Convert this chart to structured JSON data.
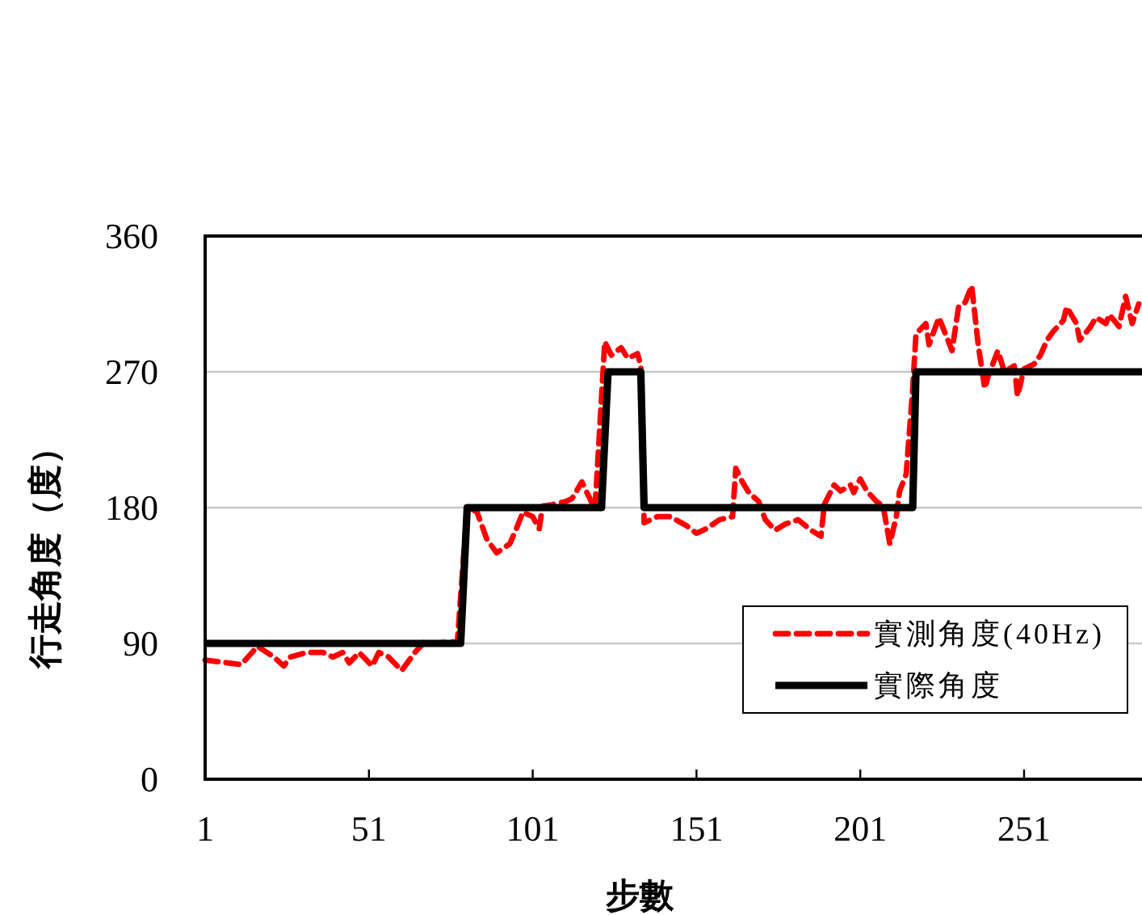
{
  "chart_data": {
    "type": "line",
    "xlabel": "步數",
    "ylabel": "行走角度（度）",
    "xlim": [
      1,
      287
    ],
    "xticks": [
      1,
      51,
      101,
      151,
      201,
      251
    ],
    "ylim": [
      0,
      360
    ],
    "yticks": [
      0,
      90,
      180,
      270,
      360
    ],
    "grid": "y",
    "legend": "bottom right",
    "series": [
      {
        "name": "實測角度(40Hz)",
        "color": "#ff0000",
        "line_style": "dashed",
        "x": [
          1,
          12,
          17,
          22,
          25,
          27,
          32,
          37,
          40,
          43,
          45,
          48,
          52,
          54,
          57,
          61,
          65,
          68,
          71,
          75,
          78,
          81,
          84,
          87,
          90,
          94,
          96,
          98,
          101,
          103,
          104,
          107,
          111,
          113,
          116,
          118,
          120,
          123,
          125,
          128,
          130,
          133,
          134,
          135,
          137,
          139,
          143,
          148,
          151,
          154,
          158,
          162,
          163,
          165,
          167,
          170,
          172,
          175,
          178,
          182,
          186,
          189,
          190,
          193,
          195,
          198,
          199,
          201,
          203,
          206,
          208,
          210,
          212,
          213,
          215,
          217,
          218,
          221,
          222,
          225,
          227,
          229,
          231,
          233,
          235,
          237,
          239,
          240,
          243,
          245,
          248,
          249,
          251,
          254,
          256,
          258,
          260,
          263,
          264,
          267,
          268,
          271,
          273,
          276,
          277,
          280,
          282,
          284,
          286
        ],
        "values": [
          79,
          76,
          88,
          81,
          75,
          81,
          84,
          84,
          81,
          84,
          77,
          84,
          75,
          84,
          81,
          72,
          84,
          91,
          90,
          91,
          91,
          181,
          177,
          159,
          150,
          156,
          166,
          177,
          174,
          166,
          181,
          182,
          184,
          186,
          197,
          188,
          179,
          290,
          281,
          286,
          279,
          282,
          274,
          170,
          172,
          174,
          174,
          168,
          163,
          166,
          172,
          174,
          206,
          197,
          190,
          184,
          172,
          165,
          169,
          172,
          165,
          161,
          182,
          195,
          191,
          195,
          190,
          199,
          191,
          184,
          181,
          156,
          174,
          191,
          202,
          259,
          295,
          302,
          288,
          306,
          295,
          284,
          313,
          316,
          327,
          288,
          259,
          267,
          284,
          270,
          274,
          254,
          272,
          275,
          281,
          291,
          297,
          304,
          313,
          302,
          291,
          299,
          306,
          302,
          308,
          300,
          320,
          302,
          315
        ]
      },
      {
        "name": "實際角度",
        "color": "#000000",
        "line_style": "solid",
        "x": [
          1,
          79,
          81,
          122,
          124,
          134,
          135,
          217,
          218,
          287
        ],
        "values": [
          90,
          90,
          180,
          180,
          270,
          270,
          180,
          180,
          270,
          270
        ]
      }
    ]
  }
}
